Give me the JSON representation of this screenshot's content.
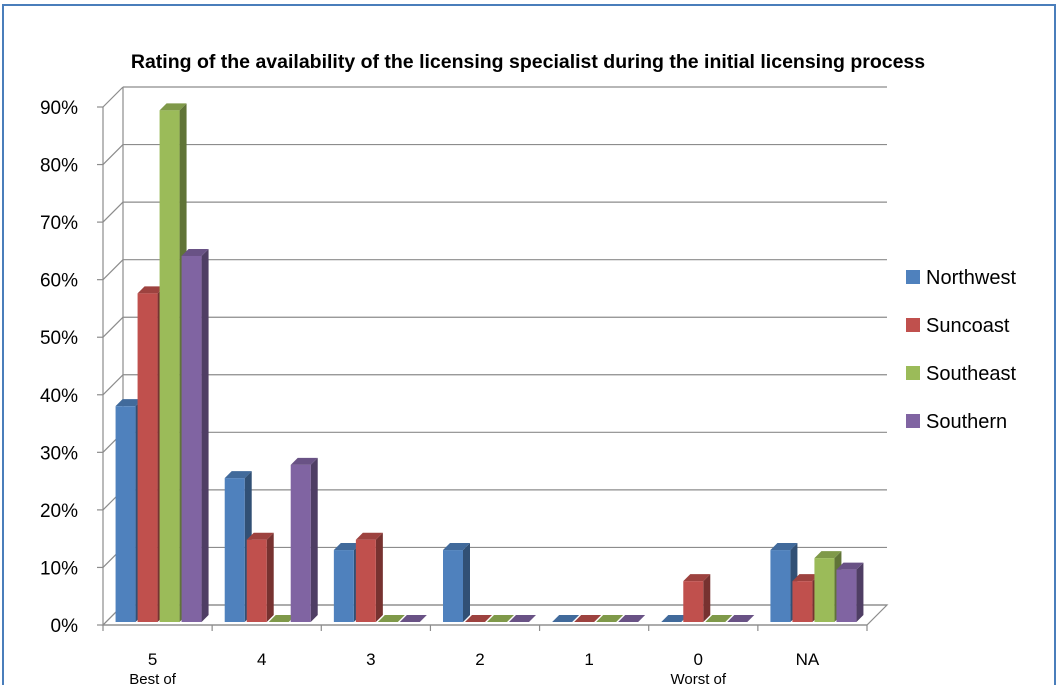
{
  "chart_data": {
    "type": "bar",
    "title": "Rating of the availability of the licensing specialist during the initial licensing process",
    "categories": [
      "5",
      "4",
      "3",
      "2",
      "1",
      "0",
      "NA"
    ],
    "category_sublabels": [
      "Best of",
      "",
      "",
      "",
      "",
      "Worst of",
      ""
    ],
    "y_tick_labels": [
      "0%",
      "10%",
      "20%",
      "30%",
      "40%",
      "50%",
      "60%",
      "70%",
      "80%",
      "90%"
    ],
    "ylim": [
      0,
      90
    ],
    "y_unit": "%",
    "grid": true,
    "legend_position": "right",
    "series": [
      {
        "name": "Northwest",
        "color": "#4f81bd",
        "values": [
          37.5,
          25,
          12.5,
          12.5,
          0,
          0,
          12.5
        ]
      },
      {
        "name": "Suncoast",
        "color": "#c0504d",
        "values": [
          57.1,
          14.3,
          14.3,
          0,
          0,
          7.1,
          7.1
        ]
      },
      {
        "name": "Southeast",
        "color": "#9bbb59",
        "values": [
          88.9,
          0,
          0,
          0,
          0,
          0,
          11.1
        ]
      },
      {
        "name": "Southern",
        "color": "#8064a2",
        "values": [
          63.6,
          27.3,
          0,
          0,
          0,
          0,
          9.1
        ]
      }
    ]
  }
}
